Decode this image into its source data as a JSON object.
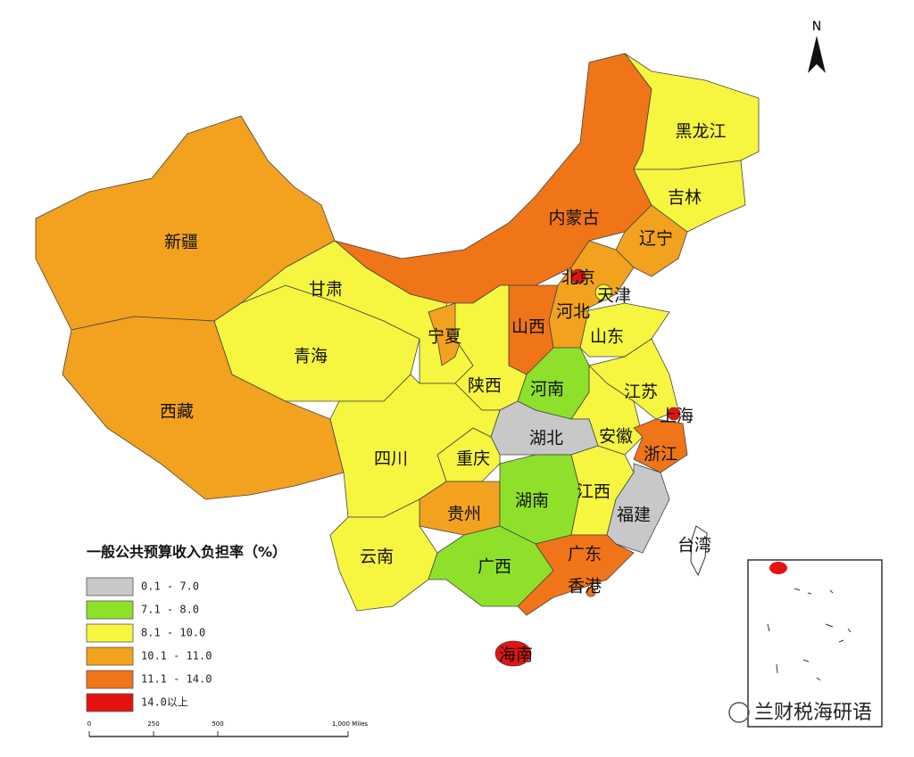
{
  "map": {
    "legend": {
      "title": "一般公共预算收入负担率（%）",
      "classes": [
        {
          "label": "0.1 - 7.0",
          "color": "#c8c8c8"
        },
        {
          "label": "7.1 - 8.0",
          "color": "#8ee02a"
        },
        {
          "label": "8.1 - 10.0",
          "color": "#f6f540"
        },
        {
          "label": "10.1 - 11.0",
          "color": "#f2a21e"
        },
        {
          "label": "11.1 - 14.0",
          "color": "#f07418"
        },
        {
          "label": "14.0以上",
          "color": "#e61212"
        }
      ]
    },
    "regions": [
      {
        "name": "新疆",
        "class": 3
      },
      {
        "name": "西藏",
        "class": 3
      },
      {
        "name": "青海",
        "class": 2
      },
      {
        "name": "甘肃",
        "class": 2
      },
      {
        "name": "内蒙古",
        "class": 4
      },
      {
        "name": "黑龙江",
        "class": 2
      },
      {
        "name": "吉林",
        "class": 2
      },
      {
        "name": "辽宁",
        "class": 3
      },
      {
        "name": "北京",
        "class": 5
      },
      {
        "name": "天津",
        "class": 2
      },
      {
        "name": "河北",
        "class": 3
      },
      {
        "name": "山西",
        "class": 4
      },
      {
        "name": "山东",
        "class": 2
      },
      {
        "name": "宁夏",
        "class": 3
      },
      {
        "name": "陕西",
        "class": 2
      },
      {
        "name": "河南",
        "class": 1
      },
      {
        "name": "江苏",
        "class": 2
      },
      {
        "name": "上海",
        "class": 5
      },
      {
        "name": "安徽",
        "class": 2
      },
      {
        "name": "浙江",
        "class": 4
      },
      {
        "name": "湖北",
        "class": 0
      },
      {
        "name": "重庆",
        "class": 2
      },
      {
        "name": "四川",
        "class": 2
      },
      {
        "name": "贵州",
        "class": 3
      },
      {
        "name": "湖南",
        "class": 1
      },
      {
        "name": "江西",
        "class": 2
      },
      {
        "name": "福建",
        "class": 0
      },
      {
        "name": "云南",
        "class": 2
      },
      {
        "name": "广西",
        "class": 1
      },
      {
        "name": "广东",
        "class": 4
      },
      {
        "name": "香港",
        "class": 4
      },
      {
        "name": "海南",
        "class": 5
      }
    ],
    "no_data_regions": [
      "台湾"
    ],
    "north": "N",
    "scale_bar": [
      "0",
      "250",
      "500",
      "1,000 Miles"
    ],
    "watermark": "兰财税海研语"
  }
}
